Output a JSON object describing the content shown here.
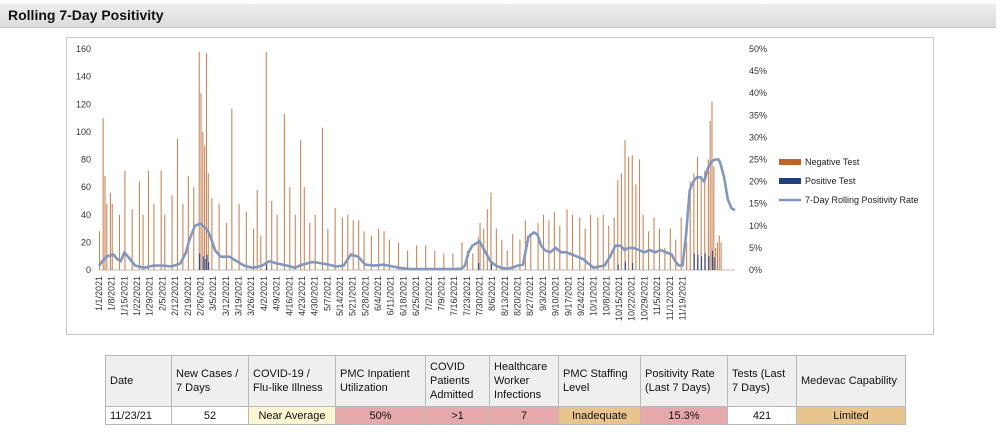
{
  "header": {
    "title": "Rolling 7-Day Positivity"
  },
  "chart_data": {
    "type": "bar",
    "title": "",
    "y_left": {
      "min": 0,
      "max": 160,
      "ticks": [
        "0",
        "20",
        "40",
        "60",
        "80",
        "100",
        "120",
        "140",
        "160"
      ]
    },
    "y_right": {
      "min": 0,
      "max": 0.5,
      "ticks": [
        "0%",
        "5%",
        "10%",
        "15%",
        "20%",
        "25%",
        "30%",
        "35%",
        "40%",
        "45%",
        "50%"
      ]
    },
    "x_tick_labels": [
      "1/1/2021",
      "1/8/2021",
      "1/15/2021",
      "1/22/2021",
      "1/29/2021",
      "2/5/2021",
      "2/12/2021",
      "2/19/2021",
      "2/26/2021",
      "3/5/2021",
      "3/12/2021",
      "3/19/2021",
      "3/26/2021",
      "4/2/2021",
      "4/9/2021",
      "4/16/2021",
      "4/23/2021",
      "4/30/2021",
      "5/7/2021",
      "5/14/2021",
      "5/21/2021",
      "5/28/2021",
      "6/4/2021",
      "6/11/2021",
      "6/18/2021",
      "6/25/2021",
      "7/2/2021",
      "7/9/2021",
      "7/16/2021",
      "7/23/2021",
      "7/30/2021",
      "8/6/2021",
      "8/13/2021",
      "8/20/2021",
      "8/27/2021",
      "9/3/2021",
      "9/10/2021",
      "9/17/2021",
      "9/24/2021",
      "10/1/2021",
      "10/8/2021",
      "10/15/2021",
      "10/22/2021",
      "10/29/2021",
      "11/5/2021",
      "11/12/2021",
      "11/19/2021"
    ],
    "legend": {
      "position": "right",
      "items": [
        {
          "name": "Negative Test",
          "color": "#c0652a",
          "kind": "bar"
        },
        {
          "name": "Positive Test",
          "color": "#1f3f78",
          "kind": "bar"
        },
        {
          "name": "7-Day Rolling Positivity Rate",
          "color": "#8197bd",
          "kind": "line"
        }
      ]
    },
    "negative_test_peaks": [
      [
        0,
        28
      ],
      [
        2,
        110
      ],
      [
        3,
        68
      ],
      [
        4,
        48
      ],
      [
        6,
        56
      ],
      [
        7,
        48
      ],
      [
        11,
        40
      ],
      [
        14,
        72
      ],
      [
        18,
        44
      ],
      [
        22,
        64
      ],
      [
        24,
        40
      ],
      [
        27,
        72
      ],
      [
        30,
        48
      ],
      [
        34,
        72
      ],
      [
        36,
        40
      ],
      [
        40,
        54
      ],
      [
        43,
        95
      ],
      [
        46,
        48
      ],
      [
        49,
        68
      ],
      [
        52,
        60
      ],
      [
        55,
        158
      ],
      [
        56,
        128
      ],
      [
        57,
        100
      ],
      [
        58,
        90
      ],
      [
        59,
        157
      ],
      [
        60,
        70
      ],
      [
        62,
        52
      ],
      [
        66,
        48
      ],
      [
        70,
        34
      ],
      [
        73,
        117
      ],
      [
        77,
        48
      ],
      [
        81,
        42
      ],
      [
        85,
        30
      ],
      [
        87,
        58
      ],
      [
        89,
        25
      ],
      [
        92,
        158
      ],
      [
        95,
        50
      ],
      [
        98,
        40
      ],
      [
        102,
        113
      ],
      [
        105,
        60
      ],
      [
        108,
        40
      ],
      [
        111,
        94
      ],
      [
        113,
        60
      ],
      [
        116,
        34
      ],
      [
        119,
        40
      ],
      [
        123,
        103
      ],
      [
        126,
        30
      ],
      [
        130,
        45
      ],
      [
        134,
        38
      ],
      [
        137,
        40
      ],
      [
        140,
        36
      ],
      [
        143,
        36
      ],
      [
        146,
        28
      ],
      [
        150,
        25
      ],
      [
        154,
        30
      ],
      [
        157,
        28
      ],
      [
        160,
        22
      ],
      [
        165,
        20
      ],
      [
        170,
        14
      ],
      [
        175,
        18
      ],
      [
        180,
        18
      ],
      [
        185,
        14
      ],
      [
        190,
        12
      ],
      [
        195,
        12
      ],
      [
        200,
        20
      ],
      [
        203,
        14
      ],
      [
        206,
        12
      ],
      [
        209,
        24
      ],
      [
        210,
        34
      ],
      [
        212,
        30
      ],
      [
        214,
        44
      ],
      [
        216,
        56
      ],
      [
        219,
        30
      ],
      [
        222,
        22
      ],
      [
        225,
        14
      ],
      [
        228,
        26
      ],
      [
        232,
        22
      ],
      [
        235,
        36
      ],
      [
        238,
        26
      ],
      [
        242,
        34
      ],
      [
        245,
        40
      ],
      [
        248,
        36
      ],
      [
        251,
        42
      ],
      [
        254,
        32
      ],
      [
        258,
        44
      ],
      [
        261,
        40
      ],
      [
        265,
        38
      ],
      [
        268,
        30
      ],
      [
        271,
        40
      ],
      [
        275,
        38
      ],
      [
        278,
        40
      ],
      [
        281,
        32
      ],
      [
        284,
        38
      ],
      [
        286,
        65
      ],
      [
        288,
        70
      ],
      [
        290,
        94
      ],
      [
        292,
        82
      ],
      [
        294,
        83
      ],
      [
        296,
        62
      ],
      [
        298,
        80
      ],
      [
        300,
        40
      ],
      [
        303,
        28
      ],
      [
        306,
        38
      ],
      [
        309,
        30
      ],
      [
        312,
        16
      ],
      [
        315,
        30
      ],
      [
        318,
        22
      ],
      [
        321,
        38
      ],
      [
        324,
        20
      ],
      [
        326,
        64
      ],
      [
        328,
        70
      ],
      [
        330,
        82
      ],
      [
        332,
        68
      ],
      [
        334,
        72
      ],
      [
        336,
        80
      ],
      [
        337,
        108
      ],
      [
        338,
        122
      ],
      [
        339,
        75
      ],
      [
        340,
        16
      ],
      [
        341,
        20
      ],
      [
        342,
        25
      ],
      [
        343,
        20
      ]
    ],
    "positive_test_peaks": [
      [
        55,
        12
      ],
      [
        57,
        10
      ],
      [
        58,
        8
      ],
      [
        59,
        11
      ],
      [
        60,
        6
      ],
      [
        92,
        4
      ],
      [
        209,
        5
      ],
      [
        216,
        6
      ],
      [
        286,
        4
      ],
      [
        290,
        6
      ],
      [
        294,
        5
      ],
      [
        328,
        12
      ],
      [
        330,
        11
      ],
      [
        332,
        10
      ],
      [
        334,
        12
      ],
      [
        336,
        10
      ],
      [
        338,
        14
      ],
      [
        339,
        9
      ]
    ],
    "rolling_positivity": [
      [
        0,
        0.01
      ],
      [
        4,
        0.03
      ],
      [
        8,
        0.035
      ],
      [
        10,
        0.025
      ],
      [
        12,
        0.02
      ],
      [
        14,
        0.04
      ],
      [
        16,
        0.03
      ],
      [
        20,
        0.01
      ],
      [
        25,
        0.005
      ],
      [
        30,
        0.01
      ],
      [
        35,
        0.01
      ],
      [
        40,
        0.008
      ],
      [
        45,
        0.015
      ],
      [
        48,
        0.04
      ],
      [
        50,
        0.07
      ],
      [
        53,
        0.1
      ],
      [
        56,
        0.105
      ],
      [
        60,
        0.09
      ],
      [
        62,
        0.07
      ],
      [
        64,
        0.045
      ],
      [
        67,
        0.03
      ],
      [
        72,
        0.03
      ],
      [
        76,
        0.02
      ],
      [
        80,
        0.01
      ],
      [
        85,
        0.005
      ],
      [
        90,
        0.01
      ],
      [
        94,
        0.02
      ],
      [
        98,
        0.015
      ],
      [
        104,
        0.01
      ],
      [
        108,
        0.005
      ],
      [
        112,
        0.012
      ],
      [
        118,
        0.018
      ],
      [
        123,
        0.015
      ],
      [
        127,
        0.012
      ],
      [
        131,
        0.008
      ],
      [
        135,
        0.01
      ],
      [
        139,
        0.035
      ],
      [
        143,
        0.03
      ],
      [
        147,
        0.012
      ],
      [
        152,
        0.01
      ],
      [
        157,
        0.012
      ],
      [
        162,
        0.008
      ],
      [
        167,
        0.004
      ],
      [
        172,
        0.002
      ],
      [
        177,
        0.002
      ],
      [
        182,
        0.002
      ],
      [
        187,
        0.002
      ],
      [
        192,
        0.002
      ],
      [
        196,
        0.002
      ],
      [
        200,
        0.003
      ],
      [
        202,
        0.01
      ],
      [
        204,
        0.04
      ],
      [
        206,
        0.055
      ],
      [
        208,
        0.06
      ],
      [
        210,
        0.065
      ],
      [
        212,
        0.05
      ],
      [
        214,
        0.035
      ],
      [
        216,
        0.02
      ],
      [
        219,
        0.01
      ],
      [
        222,
        0.005
      ],
      [
        225,
        0.003
      ],
      [
        228,
        0.005
      ],
      [
        231,
        0.01
      ],
      [
        234,
        0.012
      ],
      [
        237,
        0.075
      ],
      [
        240,
        0.085
      ],
      [
        242,
        0.08
      ],
      [
        244,
        0.055
      ],
      [
        246,
        0.045
      ],
      [
        249,
        0.04
      ],
      [
        252,
        0.05
      ],
      [
        255,
        0.04
      ],
      [
        258,
        0.04
      ],
      [
        261,
        0.035
      ],
      [
        264,
        0.03
      ],
      [
        267,
        0.025
      ],
      [
        270,
        0.015
      ],
      [
        273,
        0.005
      ],
      [
        276,
        0.008
      ],
      [
        279,
        0.01
      ],
      [
        282,
        0.03
      ],
      [
        285,
        0.055
      ],
      [
        288,
        0.055
      ],
      [
        290,
        0.045
      ],
      [
        292,
        0.05
      ],
      [
        295,
        0.05
      ],
      [
        298,
        0.045
      ],
      [
        301,
        0.04
      ],
      [
        304,
        0.045
      ],
      [
        307,
        0.04
      ],
      [
        310,
        0.045
      ],
      [
        313,
        0.04
      ],
      [
        316,
        0.035
      ],
      [
        318,
        0.02
      ],
      [
        320,
        0.01
      ],
      [
        322,
        0.01
      ],
      [
        324,
        0.08
      ],
      [
        326,
        0.18
      ],
      [
        328,
        0.2
      ],
      [
        330,
        0.21
      ],
      [
        332,
        0.21
      ],
      [
        334,
        0.2
      ],
      [
        336,
        0.23
      ],
      [
        338,
        0.245
      ],
      [
        340,
        0.25
      ],
      [
        342,
        0.25
      ],
      [
        343,
        0.24
      ],
      [
        345,
        0.21
      ],
      [
        347,
        0.16
      ],
      [
        349,
        0.14
      ],
      [
        351,
        0.135
      ]
    ],
    "x_range": [
      0,
      351
    ],
    "grid": false
  },
  "table": {
    "headers": [
      "Date",
      "New Cases / 7 Days",
      "COVID-19 / Flu-like Illness",
      "PMC Inpatient Utilization",
      "COVID Patients Admitted",
      "Healthcare Worker Infections",
      "PMC Staffing Level",
      "Positivity Rate (Last 7 Days)",
      "Tests (Last 7 Days)",
      "Medevac Capability"
    ],
    "row": [
      "11/23/21",
      "52",
      "Near Average",
      "50%",
      ">1",
      "7",
      "Inadequate",
      "15.3%",
      "421",
      "Limited"
    ],
    "row_colors": [
      "white",
      "white",
      "cream",
      "pink",
      "pink",
      "pink",
      "tan",
      "pink",
      "white",
      "tan"
    ]
  }
}
